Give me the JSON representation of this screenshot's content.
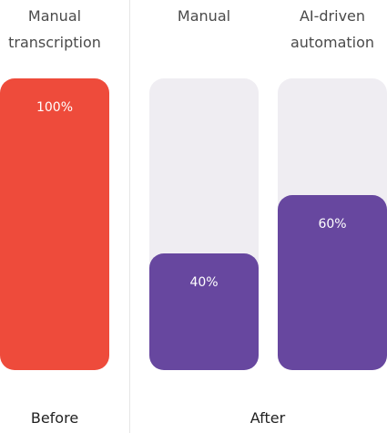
{
  "chart_data": {
    "type": "bar",
    "categories": [
      "Manual transcription",
      "Manual",
      "AI-driven automation"
    ],
    "values": [
      100,
      40,
      60
    ],
    "value_labels": [
      "100%",
      "40%",
      "60%"
    ],
    "colors": [
      "#ee4b3b",
      "#67479f",
      "#67479f"
    ],
    "track_color": "#efedf2",
    "ylim": [
      0,
      100
    ],
    "group_labels": [
      "Before",
      "After"
    ]
  }
}
